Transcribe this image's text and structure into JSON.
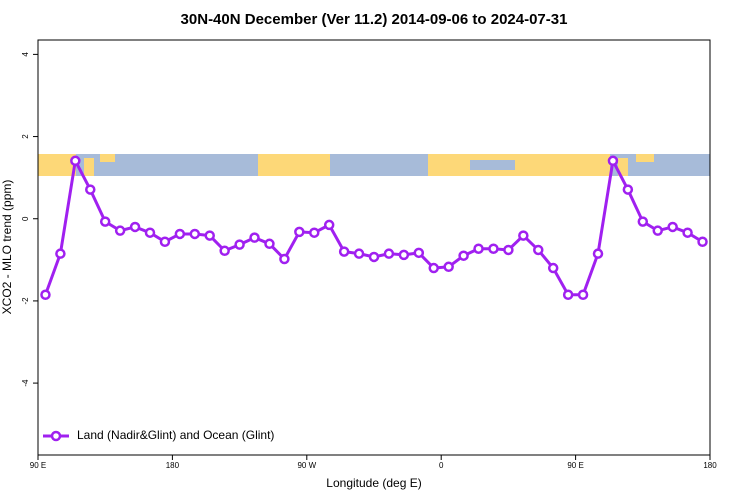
{
  "chart_data": {
    "type": "line",
    "title": "30N-40N December (Ver 11.2)   2014-09-06 to 2024-07-31",
    "xlabel": "Longitude (deg E)",
    "ylabel": "XCO2 - MLO trend (ppm)",
    "x": [
      95,
      105,
      115,
      125,
      135,
      145,
      155,
      165,
      175,
      185,
      195,
      205,
      215,
      225,
      235,
      245,
      255,
      265,
      275,
      285,
      295,
      305,
      315,
      325,
      335,
      345,
      355,
      365,
      375,
      385,
      395,
      405,
      415,
      425,
      435,
      445,
      455,
      465,
      475,
      485,
      495,
      505,
      515,
      525,
      535
    ],
    "series": [
      {
        "name": "Land (Nadir&Glint) and Ocean (Glint)",
        "color": "#a020f0",
        "values": [
          -1.85,
          -0.85,
          1.41,
          0.71,
          -0.07,
          -0.29,
          -0.2,
          -0.34,
          -0.56,
          -0.37,
          -0.37,
          -0.41,
          -0.78,
          -0.63,
          -0.46,
          -0.61,
          -0.98,
          -0.32,
          -0.34,
          -0.15,
          -0.8,
          -0.85,
          -0.93,
          -0.85,
          -0.88,
          -0.83,
          -1.2,
          -1.17,
          -0.9,
          -0.73,
          -0.73,
          -0.76,
          -0.41,
          -0.76,
          -1.2,
          -1.85,
          -1.85,
          -0.85,
          1.41,
          0.71,
          -0.07,
          -0.29,
          -0.2,
          -0.34,
          -0.56
        ]
      }
    ],
    "xlim": [
      90,
      540
    ],
    "xticks": [
      {
        "value": 90,
        "label": "90 E"
      },
      180,
      {
        "value": 270,
        "label": "90 W"
      },
      {
        "value": 360,
        "label": "0"
      },
      {
        "value": 450,
        "label": "90 E"
      },
      {
        "value": 540,
        "label": "180"
      }
    ],
    "ylim": [
      -5.75,
      4.35
    ],
    "yticks": [
      4,
      2,
      0,
      -2,
      -4
    ],
    "legend": "bottom-left"
  }
}
